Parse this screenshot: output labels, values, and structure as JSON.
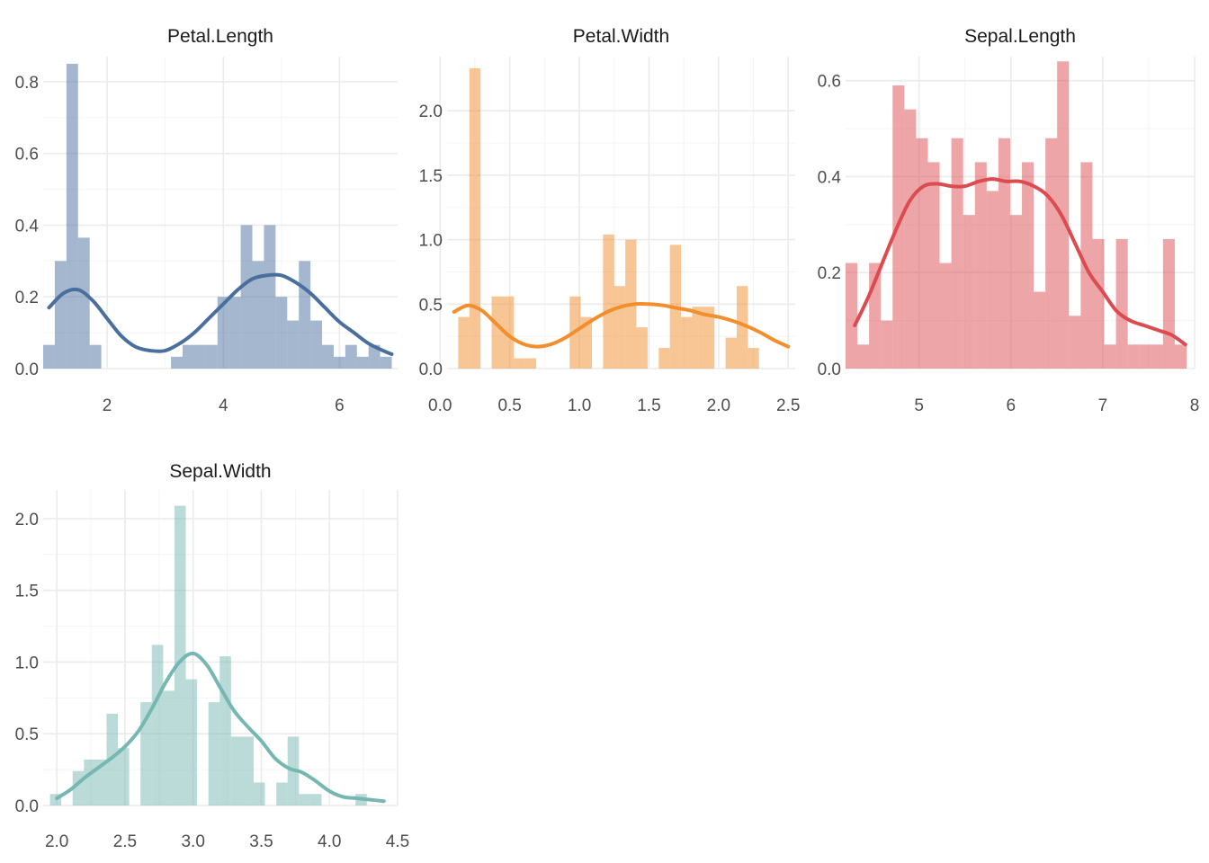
{
  "colors": {
    "petal_length": "#4A6F9E",
    "petal_width": "#F28E2B",
    "sepal_length": "#DB4B50",
    "sepal_width": "#76B7B2"
  },
  "chart_data": [
    {
      "type": "bar",
      "title": "Petal.Length",
      "xlabel": "",
      "ylabel": "",
      "xlim": [
        0.9,
        7.0
      ],
      "ylim": [
        0,
        0.87
      ],
      "x_ticks": [
        2,
        4,
        6
      ],
      "x_tick_labels": [
        "2",
        "4",
        "6"
      ],
      "y_ticks": [
        0,
        0.2,
        0.4,
        0.6,
        0.8
      ],
      "y_tick_labels": [
        "0.0",
        "0.2",
        "0.4",
        "0.6",
        "0.8"
      ],
      "grid": true,
      "color": "#4A6F9E",
      "bin_start": 0.9,
      "bin_width": 0.2,
      "values": [
        0.066,
        0.3,
        0.85,
        0.365,
        0.066,
        0,
        0,
        0,
        0,
        0,
        0,
        0.033,
        0.066,
        0.066,
        0.066,
        0.2,
        0.2,
        0.4,
        0.3,
        0.4,
        0.2,
        0.134,
        0.3,
        0.134,
        0.066,
        0.033,
        0.066,
        0.033,
        0.066,
        0.033
      ],
      "density": {
        "x": [
          1.0,
          1.25,
          1.5,
          1.75,
          2.0,
          2.25,
          2.5,
          2.75,
          3.0,
          3.25,
          3.5,
          3.75,
          4.0,
          4.25,
          4.5,
          4.75,
          5.0,
          5.25,
          5.5,
          5.75,
          6.0,
          6.25,
          6.5,
          6.75,
          6.9
        ],
        "y": [
          0.17,
          0.21,
          0.22,
          0.19,
          0.14,
          0.09,
          0.06,
          0.05,
          0.05,
          0.07,
          0.1,
          0.14,
          0.18,
          0.22,
          0.25,
          0.26,
          0.26,
          0.24,
          0.21,
          0.17,
          0.13,
          0.1,
          0.07,
          0.05,
          0.04
        ]
      }
    },
    {
      "type": "bar",
      "title": "Petal.Width",
      "xlabel": "",
      "ylabel": "",
      "xlim": [
        0.05,
        2.55
      ],
      "ylim": [
        0,
        2.42
      ],
      "x_ticks": [
        0.0,
        0.5,
        1.0,
        1.5,
        2.0,
        2.5
      ],
      "x_tick_labels": [
        "0.0",
        "0.5",
        "1.0",
        "1.5",
        "2.0",
        "2.5"
      ],
      "y_ticks": [
        0,
        0.5,
        1.0,
        1.5,
        2.0
      ],
      "y_tick_labels": [
        "0.0",
        "0.5",
        "1.0",
        "1.5",
        "2.0"
      ],
      "grid": true,
      "color": "#F28E2B",
      "bin_start": 0.05,
      "bin_width": 0.08,
      "values": [
        0,
        0.4,
        2.33,
        0,
        0.56,
        0.56,
        0.08,
        0.08,
        0,
        0,
        0,
        0.56,
        0.4,
        0,
        1.04,
        0.64,
        1.0,
        0.32,
        0,
        0.16,
        0.96,
        0.4,
        0.48,
        0.48,
        0,
        0.24,
        0.64,
        0.16
      ],
      "density": {
        "x": [
          0.1,
          0.2,
          0.3,
          0.4,
          0.5,
          0.6,
          0.7,
          0.8,
          0.9,
          1.0,
          1.1,
          1.2,
          1.3,
          1.4,
          1.5,
          1.6,
          1.7,
          1.8,
          1.9,
          2.0,
          2.1,
          2.2,
          2.3,
          2.4,
          2.5
        ],
        "y": [
          0.44,
          0.49,
          0.45,
          0.35,
          0.25,
          0.19,
          0.17,
          0.19,
          0.24,
          0.31,
          0.38,
          0.44,
          0.48,
          0.5,
          0.5,
          0.49,
          0.47,
          0.45,
          0.42,
          0.4,
          0.37,
          0.33,
          0.28,
          0.22,
          0.17
        ]
      }
    },
    {
      "type": "bar",
      "title": "Sepal.Length",
      "xlabel": "",
      "ylabel": "",
      "xlim": [
        4.2,
        8.0
      ],
      "ylim": [
        0,
        0.65
      ],
      "x_ticks": [
        5,
        6,
        7,
        8
      ],
      "x_tick_labels": [
        "5",
        "6",
        "7",
        "8"
      ],
      "y_ticks": [
        0,
        0.2,
        0.4,
        0.6
      ],
      "y_tick_labels": [
        "0.0",
        "0.2",
        "0.4",
        "0.6"
      ],
      "grid": true,
      "color": "#DB4B50",
      "bin_start": 4.2,
      "bin_width": 0.128,
      "values": [
        0.22,
        0.05,
        0.22,
        0.1,
        0.59,
        0.54,
        0.48,
        0.43,
        0.22,
        0.48,
        0.32,
        0.43,
        0.37,
        0.48,
        0.32,
        0.43,
        0.16,
        0.48,
        0.64,
        0.11,
        0.43,
        0.27,
        0.05,
        0.27,
        0.05,
        0.05,
        0.05,
        0.27,
        0.05
      ],
      "density": {
        "x": [
          4.3,
          4.45,
          4.6,
          4.75,
          4.9,
          5.05,
          5.2,
          5.35,
          5.5,
          5.65,
          5.8,
          5.95,
          6.1,
          6.25,
          6.4,
          6.55,
          6.7,
          6.85,
          7.0,
          7.15,
          7.3,
          7.45,
          7.6,
          7.75,
          7.9
        ],
        "y": [
          0.09,
          0.15,
          0.22,
          0.29,
          0.35,
          0.38,
          0.385,
          0.38,
          0.38,
          0.39,
          0.395,
          0.39,
          0.39,
          0.38,
          0.36,
          0.32,
          0.26,
          0.2,
          0.16,
          0.12,
          0.1,
          0.09,
          0.08,
          0.07,
          0.05
        ]
      }
    },
    {
      "type": "bar",
      "title": "Sepal.Width",
      "xlabel": "",
      "ylabel": "",
      "xlim": [
        1.9,
        4.5
      ],
      "ylim": [
        0,
        2.2
      ],
      "x_ticks": [
        2.0,
        2.5,
        3.0,
        3.5,
        4.0,
        4.5
      ],
      "x_tick_labels": [
        "2.0",
        "2.5",
        "3.0",
        "3.5",
        "4.0",
        "4.5"
      ],
      "y_ticks": [
        0,
        0.5,
        1.0,
        1.5,
        2.0
      ],
      "y_tick_labels": [
        "0.0",
        "0.5",
        "1.0",
        "1.5",
        "2.0"
      ],
      "grid": true,
      "color": "#76B7B2",
      "bin_start": 1.95,
      "bin_width": 0.083,
      "values": [
        0.08,
        0,
        0.24,
        0.32,
        0.32,
        0.64,
        0.4,
        0,
        0.72,
        1.12,
        0.8,
        2.09,
        0.88,
        0,
        0.72,
        1.04,
        0.48,
        0.48,
        0.16,
        0,
        0.16,
        0.48,
        0.08,
        0.08,
        0,
        0,
        0,
        0.08
      ],
      "density": {
        "x": [
          2.0,
          2.1,
          2.2,
          2.3,
          2.4,
          2.5,
          2.6,
          2.7,
          2.8,
          2.9,
          3.0,
          3.1,
          3.2,
          3.3,
          3.4,
          3.5,
          3.6,
          3.7,
          3.8,
          3.9,
          4.0,
          4.1,
          4.2,
          4.3,
          4.4
        ],
        "y": [
          0.05,
          0.11,
          0.19,
          0.26,
          0.33,
          0.41,
          0.52,
          0.68,
          0.86,
          1.0,
          1.06,
          0.98,
          0.82,
          0.66,
          0.55,
          0.45,
          0.33,
          0.26,
          0.23,
          0.17,
          0.1,
          0.06,
          0.05,
          0.04,
          0.03
        ]
      }
    }
  ]
}
